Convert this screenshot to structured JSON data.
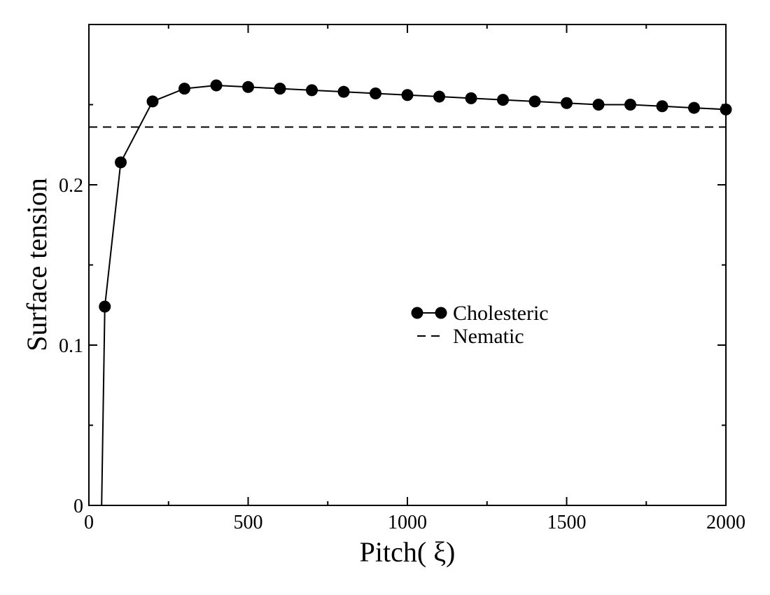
{
  "chart_data": {
    "type": "line",
    "title": "",
    "xlabel": "Pitch( ξ)",
    "ylabel": "Surface tension",
    "xlim": [
      0,
      2000
    ],
    "ylim": [
      0,
      0.3
    ],
    "xticks": [
      0,
      500,
      1000,
      1500,
      2000
    ],
    "xtick_labels": [
      "0",
      "500",
      "1000",
      "1500",
      "2000"
    ],
    "yticks": [
      0,
      0.1,
      0.2
    ],
    "ytick_labels": [
      "0",
      "0.1",
      "0.2"
    ],
    "grid": false,
    "legend_position": "center-right",
    "series": [
      {
        "name": "Cholesteric",
        "style": "solid-circles",
        "color": "#000000",
        "x": [
          40,
          50,
          100,
          200,
          300,
          400,
          500,
          600,
          700,
          800,
          900,
          1000,
          1100,
          1200,
          1300,
          1400,
          1500,
          1600,
          1700,
          1800,
          1900,
          2000
        ],
        "y": [
          0,
          0.124,
          0.214,
          0.252,
          0.26,
          0.262,
          0.261,
          0.26,
          0.259,
          0.258,
          0.257,
          0.256,
          0.255,
          0.254,
          0.253,
          0.252,
          0.251,
          0.25,
          0.25,
          0.249,
          0.248,
          0.247
        ],
        "markers": [
          false,
          true,
          true,
          true,
          true,
          true,
          true,
          true,
          true,
          true,
          true,
          true,
          true,
          true,
          true,
          true,
          true,
          true,
          true,
          true,
          true,
          true
        ]
      },
      {
        "name": "Nematic",
        "style": "dashed",
        "color": "#000000",
        "x": [
          0,
          2000
        ],
        "y": [
          0.236,
          0.236
        ]
      }
    ]
  }
}
